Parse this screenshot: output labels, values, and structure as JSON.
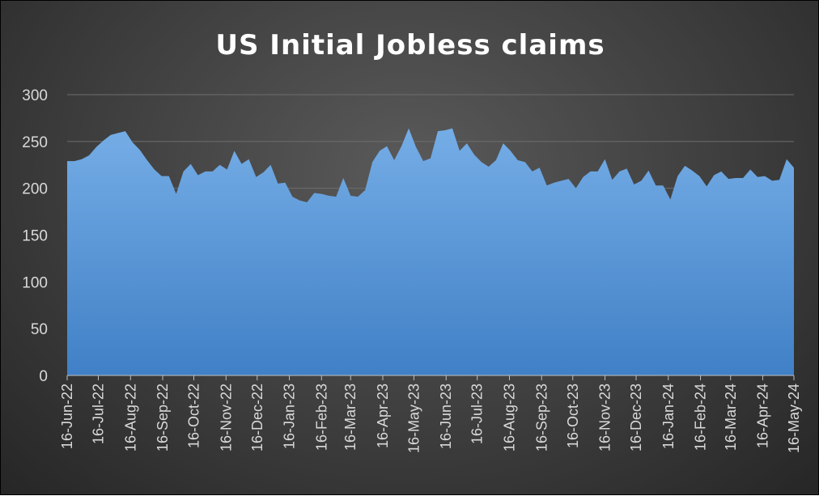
{
  "chart_data": {
    "type": "area",
    "title": "US Initial Jobless claims",
    "xlabel": "",
    "ylabel": "",
    "ylim": [
      0,
      300
    ],
    "y_ticks": [
      0,
      50,
      100,
      150,
      200,
      250,
      300
    ],
    "grid": true,
    "legend": "none",
    "x_tick_labels": [
      "16-Jun-22",
      "16-Jul-22",
      "16-Aug-22",
      "16-Sep-22",
      "16-Oct-22",
      "16-Nov-22",
      "16-Dec-22",
      "16-Jan-23",
      "16-Feb-23",
      "16-Mar-23",
      "16-Apr-23",
      "16-May-23",
      "16-Jun-23",
      "16-Jul-23",
      "16-Aug-23",
      "16-Sep-23",
      "16-Oct-23",
      "16-Nov-23",
      "16-Dec-23",
      "16-Jan-24",
      "16-Feb-24",
      "16-Mar-24",
      "16-Apr-24",
      "16-May-24"
    ],
    "x_start": "2022-06-16",
    "x_end": "2024-05-16",
    "series": [
      {
        "values": [
          229,
          229,
          231,
          235,
          244,
          251,
          257,
          259,
          261,
          249,
          241,
          230,
          220,
          213,
          213,
          194,
          218,
          226,
          214,
          218,
          218,
          225,
          220,
          240,
          226,
          231,
          212,
          217,
          225,
          205,
          206,
          191,
          187,
          185,
          195,
          194,
          192,
          191,
          211,
          192,
          191,
          198,
          228,
          240,
          245,
          230,
          245,
          264,
          244,
          229,
          232,
          261,
          262,
          264,
          240,
          248,
          236,
          228,
          223,
          230,
          248,
          240,
          230,
          228,
          218,
          222,
          203,
          206,
          208,
          210,
          200,
          212,
          218,
          218,
          231,
          209,
          218,
          221,
          204,
          208,
          219,
          203,
          203,
          188,
          213,
          224,
          219,
          213,
          202,
          214,
          218,
          210,
          211,
          211,
          220,
          212,
          213,
          208,
          209,
          231,
          222
        ],
        "color": "#5b9bd5"
      }
    ]
  }
}
